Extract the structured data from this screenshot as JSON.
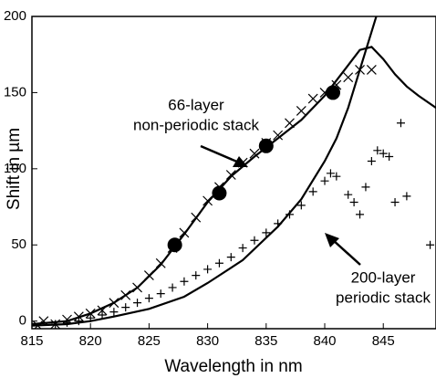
{
  "chart_data": {
    "type": "line",
    "xlabel": "Wavelength in nm",
    "ylabel": "Shift in µm",
    "xlim": [
      815,
      849.5
    ],
    "ylim": [
      -5,
      200
    ],
    "xticks": [
      815,
      820,
      825,
      830,
      835,
      840,
      845
    ],
    "yticks": [
      0,
      50,
      100,
      150,
      200
    ],
    "annotations": [
      [
        "66-layer",
        "non-periodic stack"
      ],
      [
        "200-layer",
        "periodic stack"
      ]
    ],
    "series": [
      {
        "style": "line",
        "color": "#000000",
        "x": [
          815,
          818,
          820,
          822,
          824,
          826,
          828,
          830,
          832,
          834,
          836,
          838,
          840,
          842,
          843,
          844,
          845,
          846,
          847,
          848,
          849.5
        ],
        "values": [
          -2,
          0,
          5,
          12,
          22,
          37,
          57,
          78,
          95,
          108,
          120,
          132,
          148,
          168,
          178,
          180,
          172,
          162,
          154,
          148,
          140
        ]
      },
      {
        "style": "line",
        "color": "#000000",
        "x": [
          815,
          818,
          820,
          822,
          825,
          828,
          830,
          833,
          836,
          838,
          840,
          841,
          842,
          843,
          844,
          845
        ],
        "values": [
          -3,
          -2,
          0,
          3,
          8,
          16,
          25,
          40,
          62,
          80,
          105,
          120,
          140,
          165,
          190,
          215
        ]
      },
      {
        "style": "cross",
        "color": "#000000",
        "x": [
          815.5,
          816,
          817,
          818,
          819,
          820,
          821,
          822,
          823,
          824,
          825,
          826,
          827,
          828,
          829,
          830,
          831,
          832,
          833,
          834,
          835,
          836,
          837,
          838,
          839,
          840,
          841,
          842,
          843,
          844
        ],
        "values": [
          -3,
          0,
          -2,
          1,
          3,
          5,
          7,
          12,
          17,
          22,
          30,
          38,
          48,
          58,
          68,
          79,
          88,
          96,
          104,
          110,
          117,
          122,
          130,
          138,
          146,
          150,
          155,
          160,
          165,
          165
        ]
      },
      {
        "style": "plus",
        "color": "#000000",
        "x": [
          817,
          818,
          819,
          820,
          821,
          822,
          823,
          824,
          825,
          826,
          827,
          828,
          829,
          830,
          831,
          832,
          833,
          834,
          835,
          836,
          837,
          838,
          839,
          840,
          840.5,
          841,
          842,
          842.5,
          843,
          843.5,
          844,
          844.5,
          845,
          845.5,
          846,
          846.5,
          847,
          849
        ],
        "values": [
          -2,
          -1,
          0,
          2,
          4,
          6,
          9,
          12,
          15,
          18,
          22,
          26,
          30,
          34,
          38,
          42,
          48,
          53,
          58,
          64,
          70,
          76,
          85,
          92,
          97,
          95,
          83,
          78,
          70,
          88,
          105,
          112,
          110,
          108,
          78,
          130,
          82,
          50
        ]
      },
      {
        "style": "dot",
        "color": "#000000",
        "x": [
          827.2,
          831,
          835,
          840.7
        ],
        "values": [
          50,
          84,
          115,
          150
        ]
      }
    ]
  }
}
